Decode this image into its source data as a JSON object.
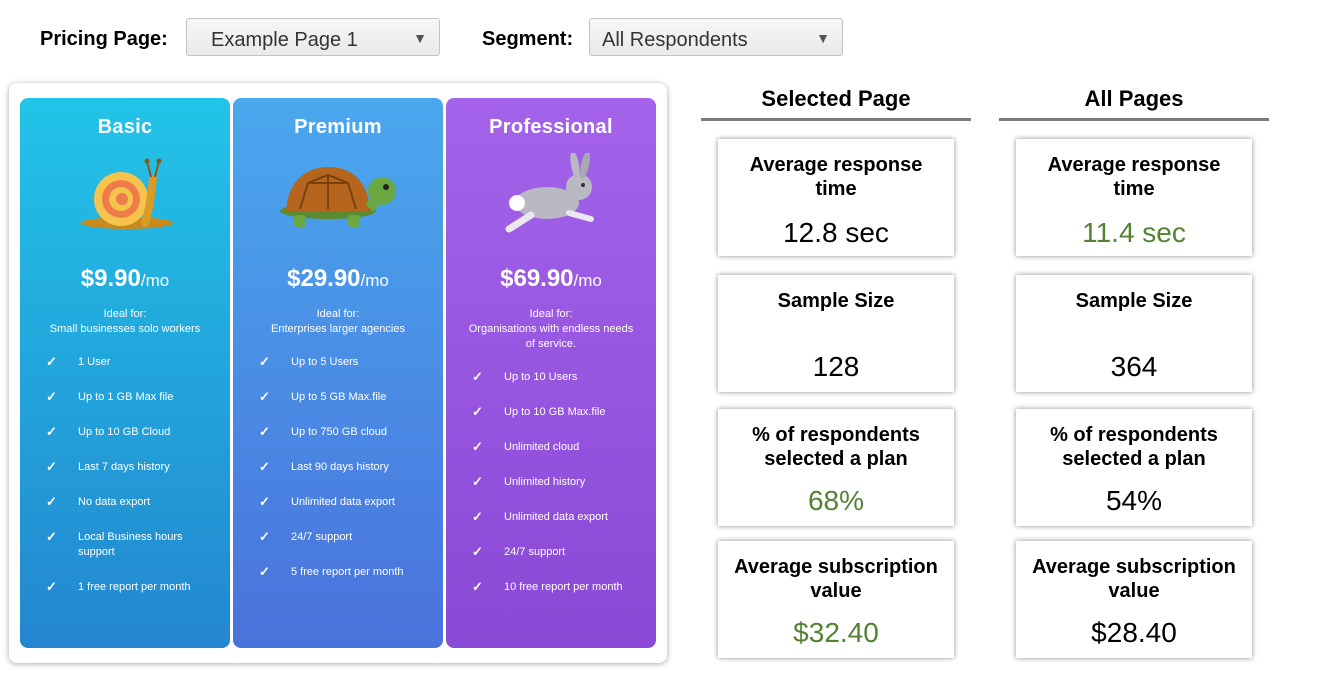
{
  "filters": {
    "pricing_page_label": "Pricing Page:",
    "pricing_page_value": "Example Page 1",
    "segment_label": "Segment:",
    "segment_value": "All Respondents"
  },
  "plans": [
    {
      "name": "Basic",
      "art": "snail",
      "price": "$9.90",
      "per": "/mo",
      "ideal_title": "Ideal for:",
      "ideal_text": "Small businesses solo workers",
      "features": [
        "1 User",
        "Up to 1 GB Max file",
        "Up to 10 GB Cloud",
        "Last 7 days history",
        "No data export",
        "Local Business hours support",
        "1 free report per month"
      ]
    },
    {
      "name": "Premium",
      "art": "turtle",
      "price": "$29.90",
      "per": "/mo",
      "ideal_title": "Ideal for:",
      "ideal_text": "Enterprises larger agencies",
      "features": [
        "Up to 5 Users",
        "Up to 5 GB Max.file",
        "Up to 750  GB cloud",
        "Last 90 days history",
        "Unlimited data export",
        "24/7 support",
        "5 free report per month"
      ]
    },
    {
      "name": "Professional",
      "art": "rabbit",
      "price": "$69.90",
      "per": "/mo",
      "ideal_title": "Ideal for:",
      "ideal_text": "Organisations with endless needs of service.",
      "features": [
        "Up to 10 Users",
        "Up to 10 GB Max.file",
        "Unlimited cloud",
        "Unlimited history",
        "Unlimited data export",
        "24/7 support",
        "10 free report per month"
      ]
    }
  ],
  "colors": {
    "green_value": "#548235",
    "basic_gradient": [
      "#22c4e8",
      "#2386cf"
    ],
    "premium_gradient": [
      "#4aa8ee",
      "#4a72dc"
    ],
    "professional_gradient": [
      "#a463ea",
      "#8a49d6"
    ]
  },
  "stats": {
    "selected": {
      "heading": "Selected Page",
      "avg_response_label": "Average response time",
      "avg_response_value": "12.8 sec",
      "sample_label": "Sample Size",
      "sample_value": "128",
      "pct_label": "% of respondents selected a plan",
      "pct_value": "68%",
      "avg_sub_label": "Average subscription value",
      "avg_sub_value": "$32.40"
    },
    "all": {
      "heading": "All Pages",
      "avg_response_label": "Average response time",
      "avg_response_value": "11.4 sec",
      "sample_label": "Sample Size",
      "sample_value": "364",
      "pct_label": "% of respondents selected a plan",
      "pct_value": "54%",
      "avg_sub_label": "Average subscription value",
      "avg_sub_value": "$28.40"
    }
  }
}
